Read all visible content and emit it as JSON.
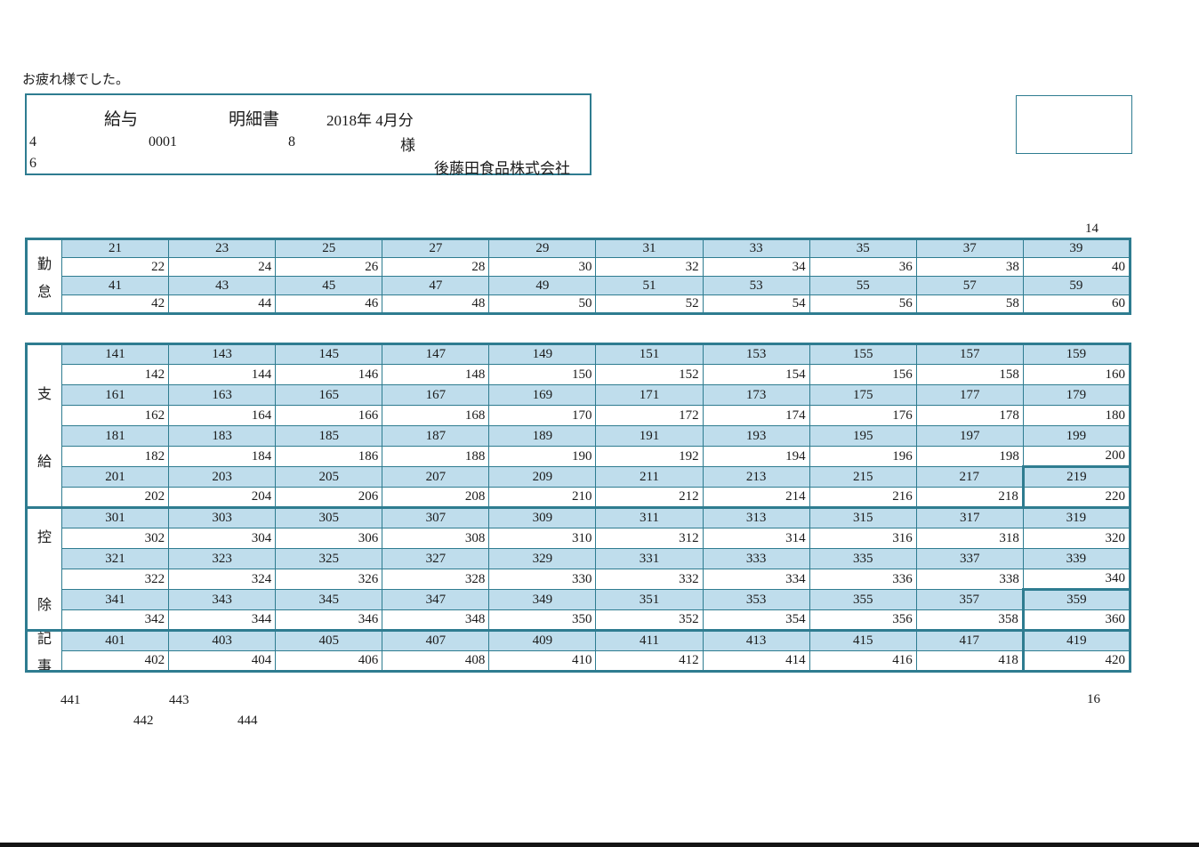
{
  "greeting": "お疲れ様でした。",
  "header_box": {
    "title_1": "給与",
    "title_2": "明細書",
    "period": "2018年 4月分",
    "code_1": "4",
    "employee_code": "0001",
    "employee_number": "8",
    "honorific": "様",
    "code_2": "6",
    "company_name": "後藤田食品株式会社"
  },
  "page_numbers": {
    "top_right": "14",
    "bottom_right": "16"
  },
  "footer_numbers": {
    "n441": "441",
    "n442": "442",
    "n443": "443",
    "n444": "444"
  },
  "colors": {
    "border_teal": "#2E7C90",
    "cell_fill_blue": "#BFDDEC",
    "text": "#1a1a1a",
    "bottom_bar": "#141414"
  },
  "tables": {
    "kintai": {
      "sections": [
        {
          "name": "kintai",
          "label": "勤怠",
          "label_chars": [
            "勤",
            "怠"
          ],
          "rows": [
            [
              "21",
              "23",
              "25",
              "27",
              "29",
              "31",
              "33",
              "35",
              "37",
              "39"
            ],
            [
              "22",
              "24",
              "26",
              "28",
              "30",
              "32",
              "34",
              "36",
              "38",
              "40"
            ],
            [
              "41",
              "43",
              "45",
              "47",
              "49",
              "51",
              "53",
              "55",
              "57",
              "59"
            ],
            [
              "42",
              "44",
              "46",
              "48",
              "50",
              "52",
              "54",
              "56",
              "58",
              "60"
            ]
          ]
        }
      ]
    },
    "main": {
      "sections": [
        {
          "name": "shikyu",
          "label": "支給",
          "label_chars": [
            "支",
            "給"
          ],
          "emphasis_last_col": [
            6,
            7
          ],
          "rows": [
            [
              "141",
              "143",
              "145",
              "147",
              "149",
              "151",
              "153",
              "155",
              "157",
              "159"
            ],
            [
              "142",
              "144",
              "146",
              "148",
              "150",
              "152",
              "154",
              "156",
              "158",
              "160"
            ],
            [
              "161",
              "163",
              "165",
              "167",
              "169",
              "171",
              "173",
              "175",
              "177",
              "179"
            ],
            [
              "162",
              "164",
              "166",
              "168",
              "170",
              "172",
              "174",
              "176",
              "178",
              "180"
            ],
            [
              "181",
              "183",
              "185",
              "187",
              "189",
              "191",
              "193",
              "195",
              "197",
              "199"
            ],
            [
              "182",
              "184",
              "186",
              "188",
              "190",
              "192",
              "194",
              "196",
              "198",
              "200"
            ],
            [
              "201",
              "203",
              "205",
              "207",
              "209",
              "211",
              "213",
              "215",
              "217",
              "219"
            ],
            [
              "202",
              "204",
              "206",
              "208",
              "210",
              "212",
              "214",
              "216",
              "218",
              "220"
            ]
          ]
        },
        {
          "name": "kojo",
          "label": "控除",
          "label_chars": [
            "控",
            "除"
          ],
          "emphasis_last_col": [
            4,
            5
          ],
          "rows": [
            [
              "301",
              "303",
              "305",
              "307",
              "309",
              "311",
              "313",
              "315",
              "317",
              "319"
            ],
            [
              "302",
              "304",
              "306",
              "308",
              "310",
              "312",
              "314",
              "316",
              "318",
              "320"
            ],
            [
              "321",
              "323",
              "325",
              "327",
              "329",
              "331",
              "333",
              "335",
              "337",
              "339"
            ],
            [
              "322",
              "324",
              "326",
              "328",
              "330",
              "332",
              "334",
              "336",
              "338",
              "340"
            ],
            [
              "341",
              "343",
              "345",
              "347",
              "349",
              "351",
              "353",
              "355",
              "357",
              "359"
            ],
            [
              "342",
              "344",
              "346",
              "348",
              "350",
              "352",
              "354",
              "356",
              "358",
              "360"
            ]
          ]
        },
        {
          "name": "kiji",
          "label": "記事",
          "label_chars": [
            "記",
            "事"
          ],
          "emphasis_last_col": [
            0,
            1
          ],
          "rows": [
            [
              "401",
              "403",
              "405",
              "407",
              "409",
              "411",
              "413",
              "415",
              "417",
              "419"
            ],
            [
              "402",
              "404",
              "406",
              "408",
              "410",
              "412",
              "414",
              "416",
              "418",
              "420"
            ]
          ]
        }
      ]
    }
  }
}
